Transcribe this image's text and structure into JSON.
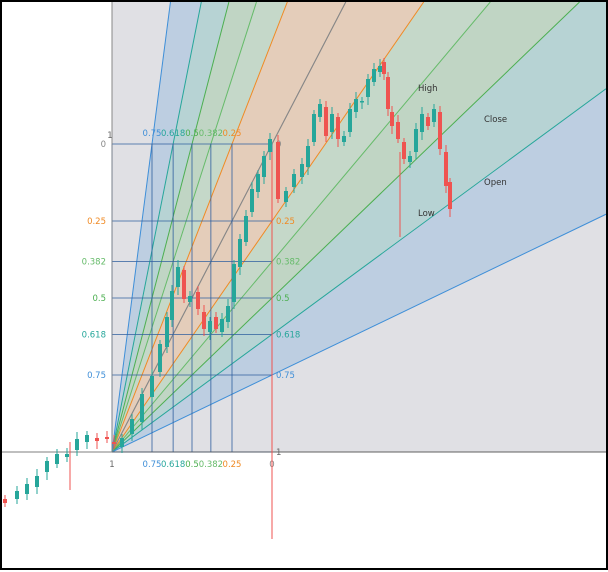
{
  "chart_data": {
    "type": "candlestick",
    "tool": "fib-speed-resistance-fan",
    "levels": [
      {
        "label": "0",
        "value": 0,
        "color": "#888888"
      },
      {
        "label": "0.25",
        "value": 0.25,
        "color": "#f08a24"
      },
      {
        "label": "0.382",
        "value": 0.382,
        "color": "#66bb6a"
      },
      {
        "label": "0.5",
        "value": 0.5,
        "color": "#4caf50"
      },
      {
        "label": "0.618",
        "value": 0.618,
        "color": "#26a69a"
      },
      {
        "label": "0.75",
        "value": 0.75,
        "color": "#3f8fd8"
      },
      {
        "label": "1",
        "value": 1,
        "color": "#888888"
      }
    ],
    "bottom_axis_labels": [
      {
        "label": "1",
        "color": "#666666"
      },
      {
        "label": "0.75",
        "color": "#3f8fd8"
      },
      {
        "label": "0.618",
        "color": "#26a69a"
      },
      {
        "label": "0.5",
        "color": "#4caf50"
      },
      {
        "label": "0.382",
        "color": "#66bb6a"
      },
      {
        "label": "0.25",
        "color": "#f08a24"
      },
      {
        "label": "0",
        "color": "#888888"
      }
    ],
    "ohlc_labels": {
      "high": "High",
      "close": "Close",
      "open": "Open",
      "low": "Low"
    },
    "colors": {
      "up": "#26a69a",
      "down": "#ef5350",
      "grid": "#2f5f9f",
      "shade": "#e0e0e4"
    },
    "grid_on": false,
    "legend": "none"
  }
}
